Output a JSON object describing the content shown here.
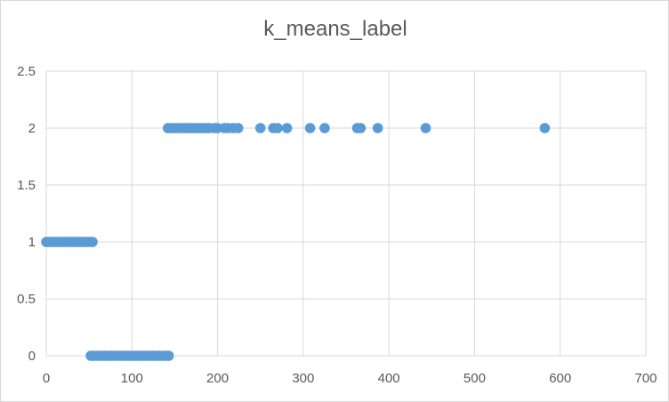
{
  "chart_data": {
    "type": "scatter",
    "title": "k_means_label",
    "xlabel": "",
    "ylabel": "",
    "xlim": [
      0,
      700
    ],
    "ylim": [
      0,
      2.5
    ],
    "x_ticks": [
      0,
      100,
      200,
      300,
      400,
      500,
      600,
      700
    ],
    "y_ticks": [
      0,
      0.5,
      1,
      1.5,
      2,
      2.5
    ],
    "x_tick_labels": [
      "0",
      "100",
      "200",
      "300",
      "400",
      "500",
      "600",
      "700"
    ],
    "y_tick_labels": [
      "0",
      "0.5",
      "1",
      "1.5",
      "2",
      "2.5"
    ],
    "grid": true,
    "legend": "none",
    "marker_color": "#5b9bd5",
    "series": [
      {
        "points": [
          [
            0,
            1
          ],
          [
            3,
            1
          ],
          [
            6,
            1
          ],
          [
            9,
            1
          ],
          [
            12,
            1
          ],
          [
            15,
            1
          ],
          [
            18,
            1
          ],
          [
            21,
            1
          ],
          [
            24,
            1
          ],
          [
            27,
            1
          ],
          [
            30,
            1
          ],
          [
            33,
            1
          ],
          [
            36,
            1
          ],
          [
            39,
            1
          ],
          [
            42,
            1
          ],
          [
            45,
            1
          ],
          [
            48,
            1
          ],
          [
            51,
            1
          ],
          [
            54,
            1
          ],
          [
            52,
            0
          ],
          [
            56,
            0
          ],
          [
            60,
            0
          ],
          [
            64,
            0
          ],
          [
            68,
            0
          ],
          [
            72,
            0
          ],
          [
            76,
            0
          ],
          [
            80,
            0
          ],
          [
            84,
            0
          ],
          [
            88,
            0
          ],
          [
            92,
            0
          ],
          [
            96,
            0
          ],
          [
            100,
            0
          ],
          [
            104,
            0
          ],
          [
            108,
            0
          ],
          [
            112,
            0
          ],
          [
            116,
            0
          ],
          [
            120,
            0
          ],
          [
            124,
            0
          ],
          [
            128,
            0
          ],
          [
            132,
            0
          ],
          [
            136,
            0
          ],
          [
            140,
            0
          ],
          [
            143,
            0
          ],
          [
            142,
            2
          ],
          [
            146,
            2
          ],
          [
            150,
            2
          ],
          [
            154,
            2
          ],
          [
            158,
            2
          ],
          [
            162,
            2
          ],
          [
            166,
            2
          ],
          [
            170,
            2
          ],
          [
            174,
            2
          ],
          [
            178,
            2
          ],
          [
            182,
            2
          ],
          [
            186,
            2
          ],
          [
            190,
            2
          ],
          [
            196,
            2
          ],
          [
            200,
            2
          ],
          [
            208,
            2
          ],
          [
            212,
            2
          ],
          [
            218,
            2
          ],
          [
            224,
            2
          ],
          [
            250,
            2
          ],
          [
            265,
            2
          ],
          [
            270,
            2
          ],
          [
            281,
            2
          ],
          [
            308,
            2
          ],
          [
            325,
            2
          ],
          [
            363,
            2
          ],
          [
            367,
            2
          ],
          [
            387,
            2
          ],
          [
            443,
            2
          ],
          [
            582,
            2
          ]
        ]
      }
    ]
  }
}
